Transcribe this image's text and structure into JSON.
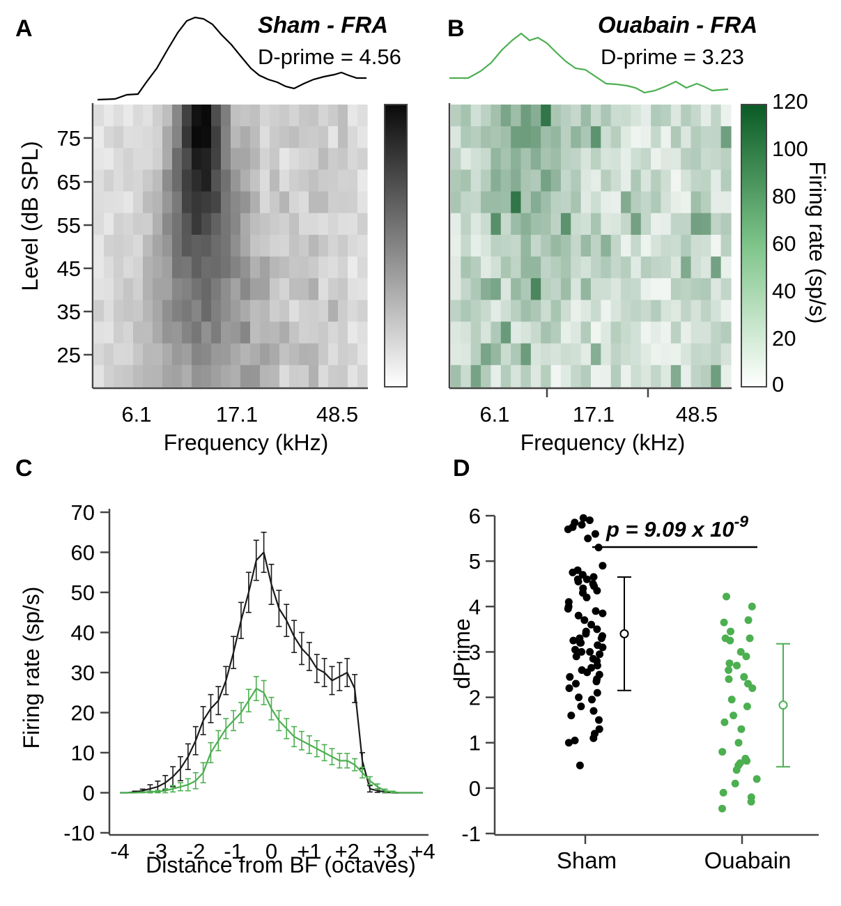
{
  "chart_data": [
    {
      "panel": "A",
      "type": "heatmap",
      "title": "Sham - FRA",
      "subtitle": "D-prime = 4.56",
      "d_prime": 4.56,
      "xlabel": "Frequency (kHz)",
      "ylabel": "Level (dB SPL)",
      "x_ticks": [
        "6.1",
        "17.1",
        "48.5"
      ],
      "y_ticks": [
        "25",
        "35",
        "45",
        "55",
        "65",
        "75"
      ],
      "colormap": "gray",
      "n_cols": 28,
      "n_rows": 13,
      "color_range": [
        0,
        120
      ],
      "summary": "Tuning peaks at about 8-12 kHz, strongest at 70-80 dB SPL"
    },
    {
      "panel": "B",
      "type": "heatmap",
      "title": "Ouabain - FRA",
      "subtitle": "D-prime = 3.23",
      "d_prime": 3.23,
      "xlabel": "Frequency (kHz)",
      "x_ticks": [
        "6.1",
        "17.1",
        "48.5"
      ],
      "colormap": "green",
      "colorbar_label": "Firing rate (sp/s)",
      "colorbar_ticks": [
        "0",
        "20",
        "40",
        "60",
        "80",
        "100",
        "120"
      ],
      "color_range": [
        0,
        120
      ],
      "n_cols": 28,
      "n_rows": 13
    },
    {
      "panel": "C",
      "type": "line",
      "xlabel": "Distance from BF (octaves)",
      "ylabel": "Firing rate (sp/s)",
      "xlim": [
        -4,
        4
      ],
      "ylim": [
        -10,
        70
      ],
      "x_tick_labels": [
        "-4",
        "-3",
        "-2",
        "-1",
        "0",
        "+1",
        "+2",
        "+3",
        "+4"
      ],
      "y_tick_labels": [
        "-10",
        "0",
        "10",
        "20",
        "30",
        "40",
        "50",
        "60",
        "70"
      ],
      "series": [
        {
          "name": "Sham",
          "color": "#1a1a1a",
          "x": [
            -4.0,
            -3.8,
            -3.6,
            -3.4,
            -3.2,
            -3.0,
            -2.8,
            -2.6,
            -2.4,
            -2.2,
            -2.0,
            -1.8,
            -1.6,
            -1.4,
            -1.2,
            -1.0,
            -0.8,
            -0.6,
            -0.4,
            -0.2,
            0.0,
            0.2,
            0.4,
            0.6,
            0.8,
            1.0,
            1.2,
            1.4,
            1.6,
            1.8,
            2.0,
            2.2,
            2.4,
            2.6,
            2.8,
            3.0,
            3.2,
            3.4,
            3.6,
            3.8,
            4.0
          ],
          "values": [
            0,
            0,
            0.2,
            0.5,
            1,
            1.5,
            2.5,
            4,
            6,
            9,
            13,
            18,
            21,
            23,
            28,
            35,
            43,
            50,
            58,
            60,
            52,
            46,
            43,
            39,
            36,
            34,
            31,
            30,
            28,
            29,
            30,
            26,
            8,
            1,
            0.5,
            0.2,
            0,
            0,
            0,
            0,
            0
          ],
          "errors": [
            0,
            0,
            0.2,
            0.4,
            1,
            1.4,
            1.8,
            2.5,
            3,
            3.2,
            3.5,
            3.5,
            3.5,
            3.5,
            3.5,
            4,
            4.5,
            5,
            5,
            5,
            5,
            4.5,
            4,
            4,
            4,
            3.5,
            3.5,
            3.5,
            3.5,
            3.5,
            3.5,
            3.5,
            2,
            0.8,
            0.4,
            0.2,
            0,
            0,
            0,
            0,
            0
          ]
        },
        {
          "name": "Ouabain",
          "color": "#4caf50",
          "x": [
            -4.0,
            -3.8,
            -3.6,
            -3.4,
            -3.2,
            -3.0,
            -2.8,
            -2.6,
            -2.4,
            -2.2,
            -2.0,
            -1.8,
            -1.6,
            -1.4,
            -1.2,
            -1.0,
            -0.8,
            -0.6,
            -0.4,
            -0.2,
            0.0,
            0.2,
            0.4,
            0.6,
            0.8,
            1.0,
            1.2,
            1.4,
            1.6,
            1.8,
            2.0,
            2.2,
            2.4,
            2.6,
            2.8,
            3.0,
            3.2,
            3.4,
            3.6,
            3.8,
            4.0
          ],
          "values": [
            0,
            0,
            0,
            0.1,
            0.2,
            0.3,
            0.5,
            1,
            1.5,
            2,
            3,
            5,
            10,
            13,
            16,
            18,
            20,
            23,
            26,
            25,
            21,
            18,
            16,
            14,
            13,
            12,
            11,
            10,
            9,
            8,
            8,
            7,
            5,
            3,
            1.5,
            0.5,
            0.2,
            0,
            0,
            0,
            0
          ],
          "errors": [
            0,
            0,
            0,
            0.1,
            0.2,
            0.3,
            0.5,
            0.8,
            1,
            1.5,
            2,
            2.5,
            2.5,
            2.5,
            2.5,
            2.5,
            2.5,
            2.8,
            3,
            3,
            2.8,
            2.5,
            2.5,
            2.5,
            2.3,
            2.2,
            2,
            2,
            2,
            1.8,
            1.8,
            1.5,
            1.3,
            1,
            0.7,
            0.4,
            0.2,
            0,
            0,
            0,
            0
          ]
        }
      ]
    },
    {
      "panel": "D",
      "type": "scatter",
      "ylabel": "dPrime",
      "ylim": [
        -1,
        6
      ],
      "y_tick_labels": [
        "-1",
        "0",
        "1",
        "2",
        "3",
        "4",
        "5",
        "6"
      ],
      "categories": [
        "Sham",
        "Ouabain"
      ],
      "p_value_text": "p = 9.09 x 10",
      "p_value_exponent": "-9",
      "series": [
        {
          "name": "Sham",
          "color": "#000000",
          "mean": 3.4,
          "sd_low": 2.15,
          "sd_high": 4.65,
          "points": [
            5.95,
            5.9,
            5.85,
            5.8,
            5.75,
            5.7,
            5.6,
            5.5,
            5.3,
            4.9,
            4.8,
            4.75,
            4.7,
            4.65,
            4.6,
            4.6,
            4.55,
            4.5,
            4.45,
            4.4,
            4.35,
            4.3,
            4.2,
            4.1,
            4.0,
            3.95,
            3.9,
            3.85,
            3.8,
            3.7,
            3.6,
            3.5,
            3.45,
            3.4,
            3.35,
            3.3,
            3.3,
            3.25,
            3.2,
            3.2,
            3.15,
            3.1,
            3.05,
            3.0,
            3.0,
            2.95,
            2.9,
            2.85,
            2.8,
            2.7,
            2.65,
            2.6,
            2.55,
            2.5,
            2.45,
            2.4,
            2.35,
            2.3,
            2.2,
            2.1,
            2.0,
            1.95,
            1.8,
            1.7,
            1.6,
            1.5,
            1.3,
            1.2,
            1.1,
            1.05,
            1.0,
            0.5
          ]
        },
        {
          "name": "Ouabain",
          "color": "#4caf50",
          "mean": 1.83,
          "sd_low": 0.47,
          "sd_high": 3.18,
          "points": [
            4.22,
            4.0,
            3.7,
            3.65,
            3.45,
            3.3,
            3.3,
            3.25,
            3.0,
            2.9,
            2.75,
            2.7,
            2.6,
            2.45,
            2.4,
            2.3,
            2.2,
            1.95,
            1.8,
            1.6,
            1.45,
            1.3,
            1.0,
            0.8,
            0.65,
            0.6,
            0.55,
            0.5,
            0.4,
            0.2,
            0.1,
            -0.1,
            -0.2,
            -0.3,
            -0.45
          ]
        }
      ]
    }
  ],
  "labels": {
    "panel_a": "A",
    "panel_b": "B",
    "panel_c": "C",
    "panel_d": "D"
  }
}
